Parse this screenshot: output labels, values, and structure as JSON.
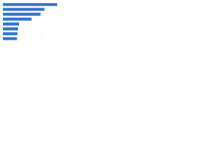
{
  "chart_data": {
    "type": "bar",
    "orientation": "horizontal",
    "values": [
      85,
      65,
      59,
      45,
      25,
      24,
      23,
      22
    ],
    "color": "#2a6fd6",
    "xlim": [
      0,
      100
    ]
  }
}
